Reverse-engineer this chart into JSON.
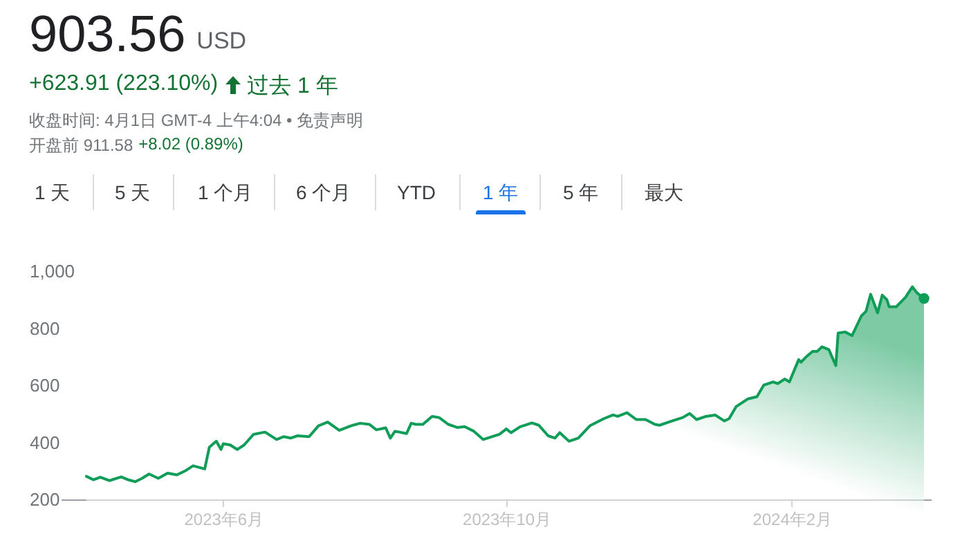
{
  "chart_data": {
    "type": "area",
    "title": "903.56",
    "subtitle": "USD",
    "annotations": [
      "+623.91 (223.10%)",
      "过去 1 年",
      "收盘时间: 4月1日 GMT-4 上午4:04 • 免责声明",
      "开盘前 911.58",
      "+8.02 (0.89%)",
      "1 天",
      "5 天",
      "1 个月",
      "6 个月",
      "YTD",
      "1 年",
      "5 年",
      "最大"
    ],
    "x": [
      "2023-04-03",
      "2023-04-06",
      "2023-04-09",
      "2023-04-13",
      "2023-04-18",
      "2023-04-21",
      "2023-04-24",
      "2023-04-27",
      "2023-04-30",
      "2023-05-04",
      "2023-05-08",
      "2023-05-12",
      "2023-05-16",
      "2023-05-19",
      "2023-05-24",
      "2023-05-26",
      "2023-05-29",
      "2023-05-31",
      "2023-06-01",
      "2023-06-04",
      "2023-06-07",
      "2023-06-10",
      "2023-06-14",
      "2023-06-19",
      "2023-06-24",
      "2023-06-27",
      "2023-06-30",
      "2023-07-03",
      "2023-07-08",
      "2023-07-12",
      "2023-07-16",
      "2023-07-21",
      "2023-07-26",
      "2023-07-30",
      "2023-08-03",
      "2023-08-06",
      "2023-08-10",
      "2023-08-12",
      "2023-08-14",
      "2023-08-19",
      "2023-08-21",
      "2023-08-23",
      "2023-08-26",
      "2023-08-30",
      "2023-09-02",
      "2023-09-06",
      "2023-09-10",
      "2023-09-13",
      "2023-09-17",
      "2023-09-21",
      "2023-09-28",
      "2023-10-01",
      "2023-10-03",
      "2023-10-07",
      "2023-10-12",
      "2023-10-15",
      "2023-10-19",
      "2023-10-22",
      "2023-10-24",
      "2023-10-28",
      "2023-11-01",
      "2023-11-06",
      "2023-11-12",
      "2023-11-16",
      "2023-11-18",
      "2023-11-22",
      "2023-11-26",
      "2023-11-30",
      "2023-12-04",
      "2023-12-06",
      "2023-12-10",
      "2023-12-16",
      "2023-12-19",
      "2023-12-22",
      "2023-12-26",
      "2023-12-30",
      "2024-01-03",
      "2024-01-05",
      "2024-01-08",
      "2024-01-13",
      "2024-01-17",
      "2024-01-20",
      "2024-01-24",
      "2024-01-26",
      "2024-01-29",
      "2024-01-31",
      "2024-02-04",
      "2024-02-05",
      "2024-02-07",
      "2024-02-10",
      "2024-02-12",
      "2024-02-14",
      "2024-02-17",
      "2024-02-20",
      "2024-02-21",
      "2024-02-24",
      "2024-02-27",
      "2024-03-02",
      "2024-03-04",
      "2024-03-06",
      "2024-03-09",
      "2024-03-11",
      "2024-03-13",
      "2024-03-14",
      "2024-03-17",
      "2024-03-21",
      "2024-03-24",
      "2024-03-26",
      "2024-03-29"
    ],
    "series": [
      {
        "color": "#0f9d58",
        "values": [
          281,
          269,
          278,
          266,
          279,
          269,
          262,
          274,
          289,
          274,
          292,
          286,
          302,
          318,
          307,
          383,
          404,
          375,
          395,
          391,
          375,
          391,
          428,
          436,
          410,
          420,
          415,
          423,
          420,
          458,
          471,
          442,
          458,
          467,
          463,
          444,
          451,
          415,
          439,
          431,
          467,
          463,
          463,
          491,
          487,
          463,
          452,
          455,
          439,
          410,
          428,
          447,
          434,
          455,
          468,
          460,
          423,
          415,
          434,
          404,
          415,
          458,
          483,
          496,
          491,
          504,
          480,
          480,
          463,
          460,
          471,
          487,
          501,
          480,
          491,
          496,
          475,
          483,
          525,
          552,
          560,
          601,
          612,
          606,
          622,
          612,
          690,
          681,
          698,
          719,
          719,
          735,
          725,
          669,
          783,
          787,
          774,
          843,
          859,
          919,
          854,
          916,
          900,
          875,
          875,
          908,
          945,
          924,
          904
        ]
      }
    ],
    "xlim": [
      "2023-03-23",
      "2024-04-01"
    ],
    "xticks": [
      {
        "value": "2023-06-01",
        "label": "2023年6月"
      },
      {
        "value": "2023-10-01",
        "label": "2023年10月"
      },
      {
        "value": "2024-02-01",
        "label": "2024年2月"
      }
    ],
    "ylim": [
      200,
      1000
    ],
    "yticks": [
      200,
      400,
      600,
      800,
      {
        "value": 1000,
        "label": "1,000"
      }
    ]
  }
}
